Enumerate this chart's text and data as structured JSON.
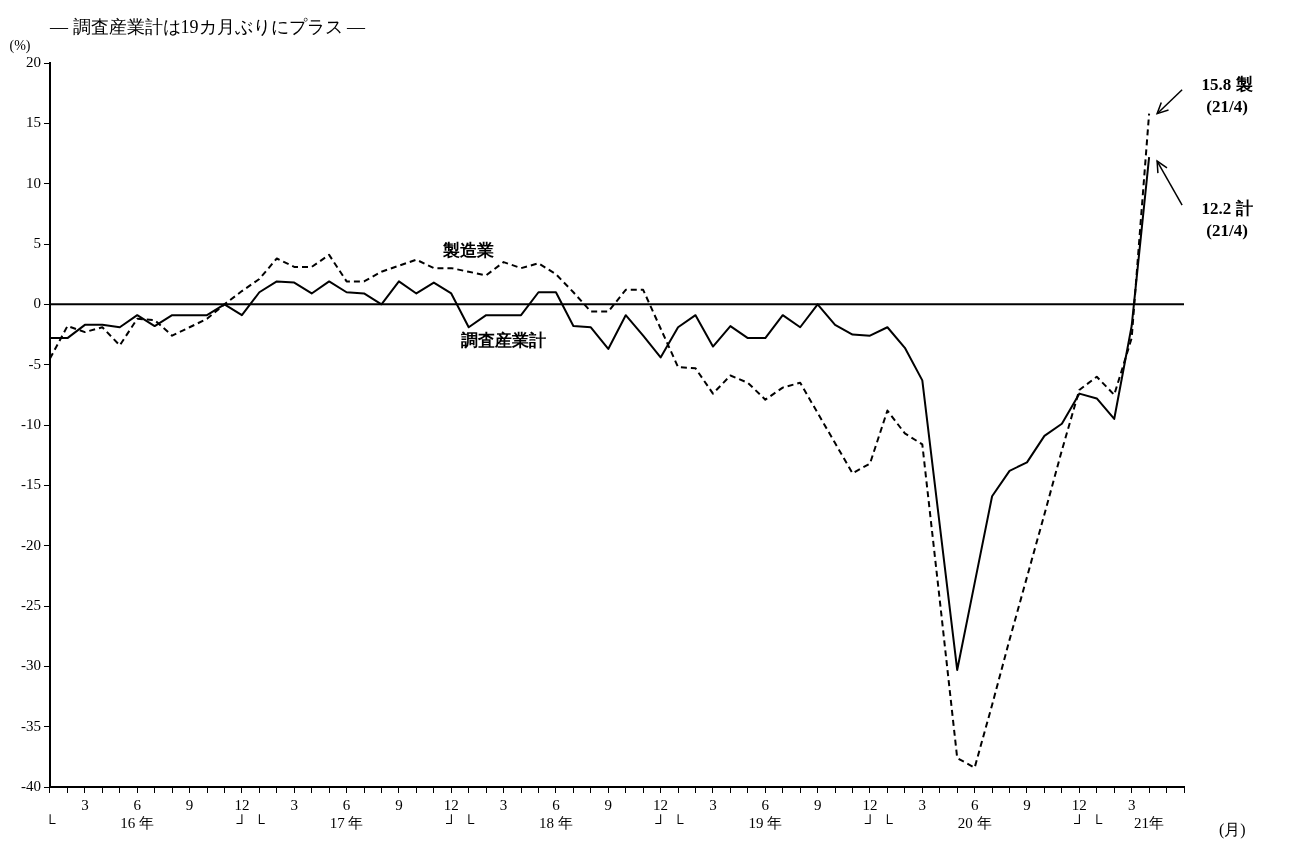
{
  "chart_data": {
    "type": "line",
    "title": "― 調査産業計は19カ月ぶりにプラス ―",
    "ylabel": "(%)",
    "xlabel": "(月)",
    "categories": [
      "\n└",
      null,
      "3",
      null,
      null,
      "6\n16 年",
      null,
      null,
      "9",
      null,
      null,
      "12\n┘",
      "\n└",
      null,
      "3",
      null,
      null,
      "6\n17 年",
      null,
      null,
      "9",
      null,
      null,
      "12\n┘",
      "\n└",
      null,
      "3",
      null,
      null,
      "6\n18 年",
      null,
      null,
      "9",
      null,
      null,
      "12\n┘",
      "\n└",
      null,
      "3",
      null,
      null,
      "6\n19 年",
      null,
      null,
      "9",
      null,
      null,
      "12\n┘",
      "\n└",
      null,
      "3",
      null,
      null,
      "6\n20 年",
      null,
      null,
      "9",
      null,
      null,
      "12\n┘",
      "\n└",
      null,
      "3",
      "\n21年",
      null,
      null
    ],
    "series": [
      {
        "name": "調査産業計",
        "color": "#000000",
        "line_style": "solid",
        "values": [
          -2.8,
          -2.8,
          -1.7,
          -1.7,
          -1.9,
          -0.9,
          -1.8,
          -0.9,
          -0.9,
          -0.9,
          0,
          -0.9,
          1.0,
          1.9,
          1.8,
          0.9,
          1.9,
          1.0,
          0.9,
          0,
          1.9,
          0.9,
          1.8,
          0.9,
          -1.9,
          -0.9,
          -0.9,
          -0.9,
          1.0,
          1.0,
          -1.8,
          -1.9,
          -3.7,
          -0.9,
          -2.6,
          -4.4,
          -1.9,
          -0.9,
          -3.5,
          -1.8,
          -2.8,
          -2.8,
          -0.9,
          -1.9,
          0,
          -1.7,
          -2.5,
          -2.6,
          -1.9,
          -3.6,
          -6.3,
          -18.3,
          -30.3,
          -23.1,
          -15.9,
          -13.8,
          -13.1,
          -10.9,
          -9.9,
          -7.4,
          -7.8,
          -9.5,
          -1.8,
          12.2,
          null,
          null
        ]
      },
      {
        "name": "製造業",
        "color": "#000000",
        "line_style": "dashed",
        "values": [
          -4.5,
          -1.8,
          -2.3,
          -1.9,
          -3.4,
          -1.2,
          -1.3,
          -2.6,
          -1.9,
          -1.2,
          0,
          1.1,
          2.1,
          3.8,
          3.1,
          3.1,
          4.1,
          1.9,
          1.9,
          2.7,
          3.2,
          3.7,
          3.0,
          3.0,
          2.7,
          2.4,
          3.5,
          3.0,
          3.4,
          2.5,
          1.0,
          -0.6,
          -0.6,
          1.2,
          1.2,
          -2.0,
          -5.2,
          -5.3,
          -7.4,
          -5.9,
          -6.5,
          -7.9,
          -6.9,
          -6.5,
          -9.0,
          -11.5,
          -14.0,
          -13.2,
          -8.8,
          -10.7,
          -11.6,
          -24.5,
          -37.6,
          -38.4,
          -33.2,
          -27.8,
          -22.6,
          -17.4,
          -12.1,
          -7.1,
          -6.0,
          -7.5,
          -2.8,
          15.8,
          null,
          null
        ]
      }
    ],
    "ylim": [
      -40,
      20
    ],
    "yticks": [
      -40,
      -35,
      -30,
      -25,
      -20,
      -15,
      -10,
      -5,
      0,
      5,
      10,
      15,
      20
    ],
    "ref_lines": [
      {
        "axis": "y",
        "value": 0,
        "color": "#000000",
        "line_style": "solid"
      }
    ],
    "annotations": [
      {
        "text": "15.8 製\n(21/4)",
        "x": "\n21年",
        "y": 15.8
      },
      {
        "text": "12.2 計\n(21/4)",
        "x": "\n21年",
        "y": 12.2
      }
    ],
    "marker": "none"
  }
}
